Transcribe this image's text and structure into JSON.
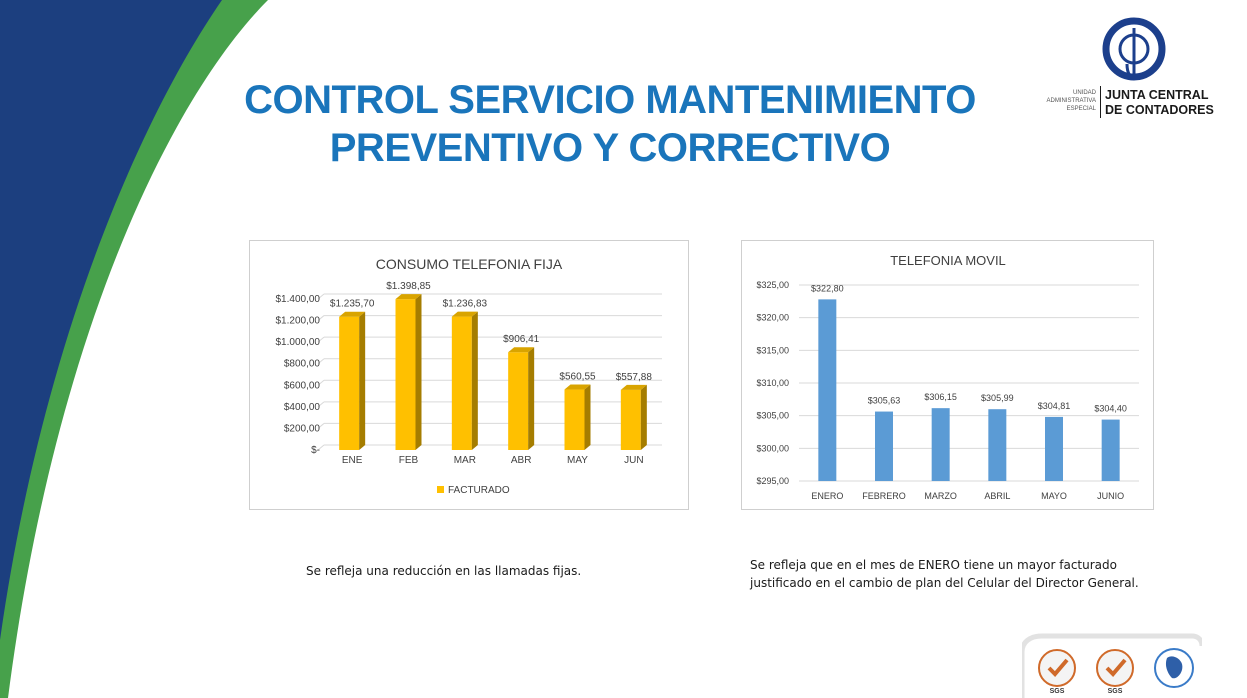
{
  "slide": {
    "title_line1": "CONTROL  SERVICIO MANTENIMIENTO",
    "title_line2": "PREVENTIVO Y CORRECTIVO"
  },
  "logo": {
    "monogram": "cjc",
    "sub_line1": "UNIDAD",
    "sub_line2": "ADMINISTRATIVA",
    "sub_line3": "ESPECIAL",
    "name_line1": "JUNTA CENTRAL",
    "name_line2": "DE CONTADORES"
  },
  "colors": {
    "title_blue": "#1a75bb",
    "deco_navy": "#1c3f7f",
    "deco_green": "#47a14b",
    "bar_gold": "#ffc000",
    "bar_blue": "#5b9bd5"
  },
  "chart_data": [
    {
      "type": "bar",
      "title": "CONSUMO TELEFONIA FIJA",
      "categories": [
        "ENE",
        "FEB",
        "MAR",
        "ABR",
        "MAY",
        "JUN"
      ],
      "series": [
        {
          "name": "FACTURADO",
          "values": [
            1235.7,
            1398.85,
            1236.83,
            906.41,
            560.55,
            557.88
          ]
        }
      ],
      "data_labels": [
        "$1.235,70",
        "$1.398,85",
        "$1.236,83",
        "$906,41",
        "$560,55",
        "$557,88"
      ],
      "ylim": [
        0,
        1400
      ],
      "yticks": [
        0,
        200,
        400,
        600,
        800,
        1000,
        1200,
        1400
      ],
      "ytick_labels": [
        "$-",
        "$200,00",
        "$400,00",
        "$600,00",
        "$800,00",
        "$1.000,00",
        "$1.200,00",
        "$1.400,00"
      ],
      "grid": true,
      "legend": "bottom",
      "style": "3d"
    },
    {
      "type": "bar",
      "title": "TELEFONIA MOVIL",
      "categories": [
        "ENERO",
        "FEBRERO",
        "MARZO",
        "ABRIL",
        "MAYO",
        "JUNIO"
      ],
      "series": [
        {
          "values": [
            322.8,
            305.63,
            306.15,
            305.99,
            304.81,
            304.4
          ]
        }
      ],
      "data_labels": [
        "$322,80",
        "$305,63",
        "$306,15",
        "$305,99",
        "$304,81",
        "$304,40"
      ],
      "ylim": [
        295,
        325
      ],
      "yticks": [
        295,
        300,
        305,
        310,
        315,
        320,
        325
      ],
      "ytick_labels": [
        "$295,00",
        "$300,00",
        "$305,00",
        "$310,00",
        "$315,00",
        "$320,00",
        "$325,00"
      ],
      "grid": true
    }
  ],
  "notes": {
    "fija": "Se refleja una reducción en las llamadas fijas.",
    "movil": "Se refleja que en el mes de ENERO tiene un mayor facturado justificado en el cambio de plan del Celular del Director General."
  },
  "certifications": {
    "badge1": "SGS",
    "badge2": "SGS"
  }
}
